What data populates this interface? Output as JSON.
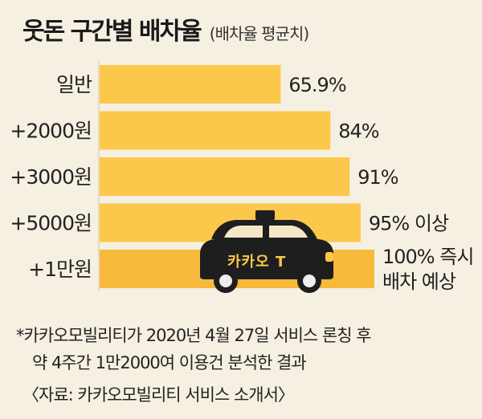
{
  "chart_data": {
    "type": "bar",
    "orientation": "horizontal",
    "title": "웃돈 구간별 배차율",
    "subtitle": "(배차율 평균치)",
    "categories": [
      "일반",
      "+2000원",
      "+3000원",
      "+5000원",
      "+1만원"
    ],
    "values": [
      65.9,
      84,
      91,
      95,
      100
    ],
    "value_labels": [
      "65.9%",
      "84%",
      "91%",
      "95% 이상",
      "100% 즉시 배차 예상"
    ],
    "value_label_lines": [
      [
        "65.9%"
      ],
      [
        "84%"
      ],
      [
        "91%"
      ],
      [
        "95% 이상"
      ],
      [
        "100% 즉시",
        "배차 예상"
      ]
    ],
    "xlim": [
      0,
      100
    ],
    "grid": false,
    "bar_color": "#fcc84b",
    "last_bar_color": "#f6b93b"
  },
  "taxi": {
    "badge_text": "카카오 T",
    "body_color": "#1e1e1e",
    "light_color": "#fcc84b"
  },
  "notes": [
    "*카카오모빌리티가 2020년 4월 27일 서비스 론칭 후",
    "약 4주간 1만2000여 이용건 분석한 결과",
    "〈자료: 카카오모빌리티 서비스 소개서〉"
  ]
}
